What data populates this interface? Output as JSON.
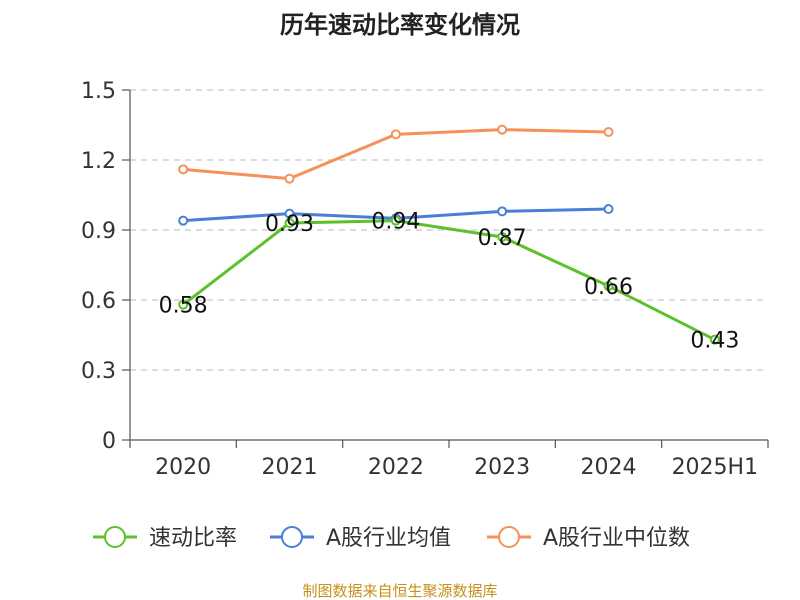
{
  "chart_data": {
    "type": "line",
    "title": "历年速动比率变化情况",
    "xlabel": "",
    "ylabel": "",
    "categories": [
      "2020",
      "2021",
      "2022",
      "2023",
      "2024",
      "2025H1"
    ],
    "ylim": [
      0,
      1.5
    ],
    "yticks": [
      "0",
      "0.3",
      "0.6",
      "0.9",
      "1.2",
      "1.5"
    ],
    "grid": true,
    "legend_position": "bottom",
    "series": [
      {
        "name": "速动比率",
        "color": "#5cc12b",
        "values": [
          0.58,
          0.93,
          0.94,
          0.87,
          0.66,
          0.43
        ],
        "labels": [
          "0.58",
          "0.93",
          "0.94",
          "0.87",
          "0.66",
          "0.43"
        ]
      },
      {
        "name": "A股行业均值",
        "color": "#4a7fd6",
        "values": [
          0.94,
          0.97,
          0.95,
          0.98,
          0.99,
          null
        ]
      },
      {
        "name": "A股行业中位数",
        "color": "#f5925a",
        "values": [
          1.16,
          1.12,
          1.31,
          1.33,
          1.32,
          null
        ]
      }
    ]
  },
  "footer": {
    "source": "制图数据来自恒生聚源数据库"
  }
}
